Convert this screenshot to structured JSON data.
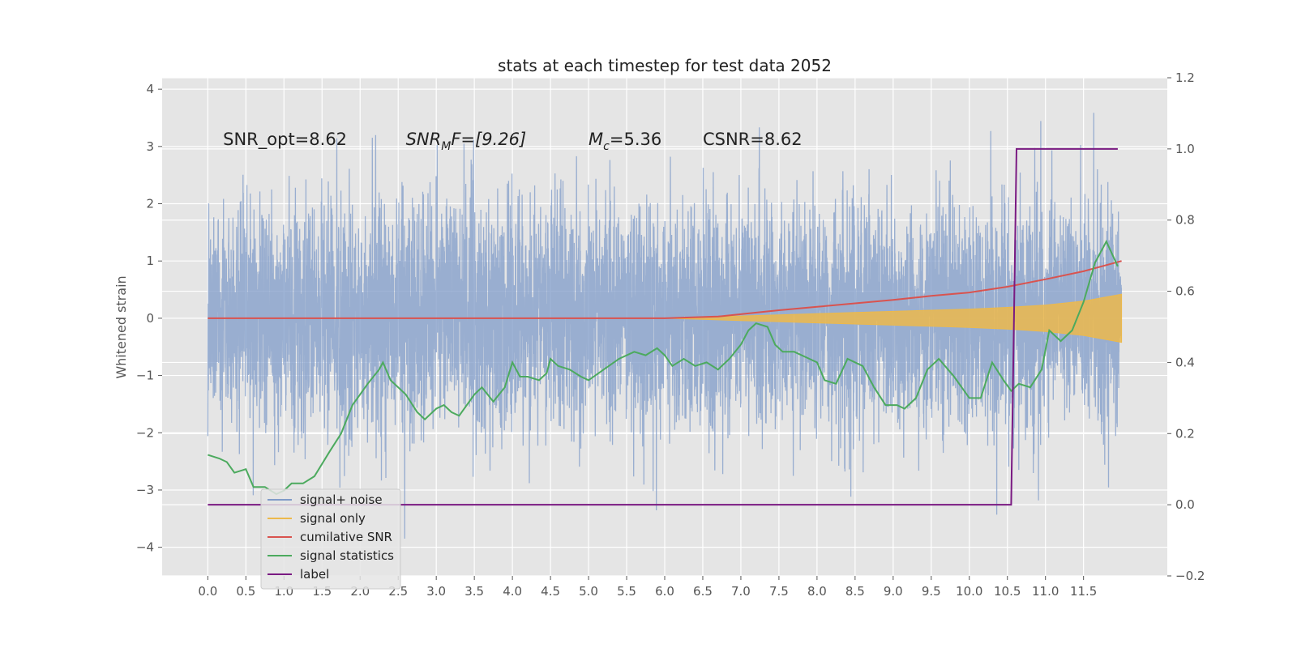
{
  "chart_data": {
    "type": "line",
    "title": "stats at each timestep for test data 2052",
    "ylabel": "Whitened strain",
    "xlabel": "",
    "xlim": [
      -0.6,
      12.6
    ],
    "ylim": [
      -4.5,
      4.2
    ],
    "y2lim": [
      -0.2,
      1.2
    ],
    "grid": true,
    "legend_position": "lower-left",
    "x_ticks": [
      "0.0",
      "0.5",
      "1.0",
      "1.5",
      "2.0",
      "2.5",
      "3.0",
      "3.5",
      "4.0",
      "4.5",
      "5.0",
      "5.5",
      "6.0",
      "6.5",
      "7.0",
      "7.5",
      "8.0",
      "8.5",
      "9.0",
      "9.5",
      "10.0",
      "10.5",
      "11.0",
      "11.5"
    ],
    "y_ticks": [
      "−4",
      "−3",
      "−2",
      "−1",
      "0",
      "1",
      "2",
      "3",
      "4"
    ],
    "y2_ticks": [
      "−0.2",
      "0.0",
      "0.2",
      "0.4",
      "0.6",
      "0.8",
      "1.0",
      "1.2"
    ],
    "colors": {
      "plot_bg": "#e5e5e5",
      "grid": "#ffffff",
      "noise": "#7f9bc8",
      "signal": "#ecb94c",
      "cumulative_snr": "#d9534f",
      "signal_statistics": "#4caa5e",
      "label": "#7a1a82"
    },
    "annotations": [
      {
        "name": "snr-opt",
        "text": "SNR_opt=8.62",
        "x": 0.2,
        "y": 3.0
      },
      {
        "name": "snr-mf",
        "base": "SNR",
        "sub": "M",
        "tail": "F=[9.26]",
        "x": 2.6,
        "y": 3.0
      },
      {
        "name": "mc",
        "base": "M",
        "sub": "c",
        "tail": "=5.36",
        "x": 5.0,
        "y": 3.0
      },
      {
        "name": "csnr",
        "text": "CSNR=8.62",
        "x": 6.5,
        "y": 3.0
      }
    ],
    "legend": [
      {
        "label": "signal+ noise",
        "color_key": "noise"
      },
      {
        "label": "signal only",
        "color_key": "signal"
      },
      {
        "label": "cumilative SNR",
        "color_key": "cumulative_snr"
      },
      {
        "label": "signal statistics",
        "color_key": "signal_statistics"
      },
      {
        "label": "label",
        "color_key": "label"
      }
    ],
    "series": [
      {
        "name": "signal+ noise",
        "axis": "left",
        "kind": "noise",
        "x_range": [
          0.0,
          12.0
        ],
        "sample_step": 0.002,
        "typical_min": -2.2,
        "typical_max": 2.3,
        "extreme_min": -4.1,
        "extreme_max": 3.85
      },
      {
        "name": "signal only",
        "axis": "left",
        "kind": "envelope",
        "x": [
          0.0,
          6.0,
          6.5,
          7.0,
          7.5,
          8.0,
          8.5,
          9.0,
          9.5,
          10.0,
          10.5,
          11.0,
          11.5,
          12.0
        ],
        "amplitude": [
          0.0,
          0.0,
          0.02,
          0.04,
          0.06,
          0.08,
          0.1,
          0.12,
          0.14,
          0.16,
          0.19,
          0.23,
          0.3,
          0.42
        ]
      },
      {
        "name": "cumilative SNR",
        "axis": "left",
        "x": [
          0.0,
          6.0,
          6.7,
          7.0,
          7.5,
          8.0,
          8.5,
          9.0,
          9.5,
          10.0,
          10.5,
          11.0,
          11.5,
          12.0
        ],
        "y": [
          0.0,
          0.0,
          0.03,
          0.07,
          0.14,
          0.2,
          0.26,
          0.32,
          0.39,
          0.45,
          0.55,
          0.68,
          0.82,
          1.0
        ]
      },
      {
        "name": "signal statistics",
        "axis": "right",
        "x": [
          0.0,
          0.15,
          0.25,
          0.35,
          0.5,
          0.6,
          0.75,
          0.9,
          1.0,
          1.1,
          1.25,
          1.4,
          1.6,
          1.75,
          1.9,
          2.0,
          2.1,
          2.25,
          2.3,
          2.4,
          2.5,
          2.6,
          2.75,
          2.85,
          3.0,
          3.1,
          3.2,
          3.3,
          3.5,
          3.6,
          3.75,
          3.9,
          4.0,
          4.1,
          4.2,
          4.35,
          4.45,
          4.5,
          4.6,
          4.75,
          4.9,
          5.0,
          5.2,
          5.4,
          5.6,
          5.75,
          5.9,
          6.0,
          6.1,
          6.25,
          6.4,
          6.55,
          6.7,
          6.85,
          7.0,
          7.1,
          7.2,
          7.35,
          7.45,
          7.55,
          7.7,
          7.9,
          8.0,
          8.1,
          8.25,
          8.4,
          8.6,
          8.75,
          8.9,
          9.05,
          9.15,
          9.3,
          9.45,
          9.6,
          9.8,
          10.0,
          10.15,
          10.3,
          10.45,
          10.55,
          10.65,
          10.8,
          10.95,
          11.05,
          11.2,
          11.35,
          11.5,
          11.65,
          11.8,
          11.95
        ],
        "y": [
          0.14,
          0.13,
          0.12,
          0.09,
          0.1,
          0.05,
          0.05,
          0.03,
          0.04,
          0.06,
          0.06,
          0.08,
          0.15,
          0.2,
          0.28,
          0.31,
          0.34,
          0.38,
          0.4,
          0.35,
          0.33,
          0.31,
          0.26,
          0.24,
          0.27,
          0.28,
          0.26,
          0.25,
          0.31,
          0.33,
          0.29,
          0.33,
          0.4,
          0.36,
          0.36,
          0.35,
          0.37,
          0.41,
          0.39,
          0.38,
          0.36,
          0.35,
          0.38,
          0.41,
          0.43,
          0.42,
          0.44,
          0.42,
          0.39,
          0.41,
          0.39,
          0.4,
          0.38,
          0.41,
          0.45,
          0.49,
          0.51,
          0.5,
          0.45,
          0.43,
          0.43,
          0.41,
          0.4,
          0.35,
          0.34,
          0.41,
          0.39,
          0.33,
          0.28,
          0.28,
          0.27,
          0.3,
          0.38,
          0.41,
          0.36,
          0.3,
          0.3,
          0.4,
          0.35,
          0.32,
          0.34,
          0.33,
          0.38,
          0.49,
          0.46,
          0.49,
          0.57,
          0.68,
          0.74,
          0.67
        ]
      },
      {
        "name": "label",
        "axis": "right",
        "x": [
          0.0,
          10.55,
          10.62,
          11.95
        ],
        "y": [
          0.0,
          0.0,
          1.0,
          1.0
        ]
      }
    ]
  }
}
